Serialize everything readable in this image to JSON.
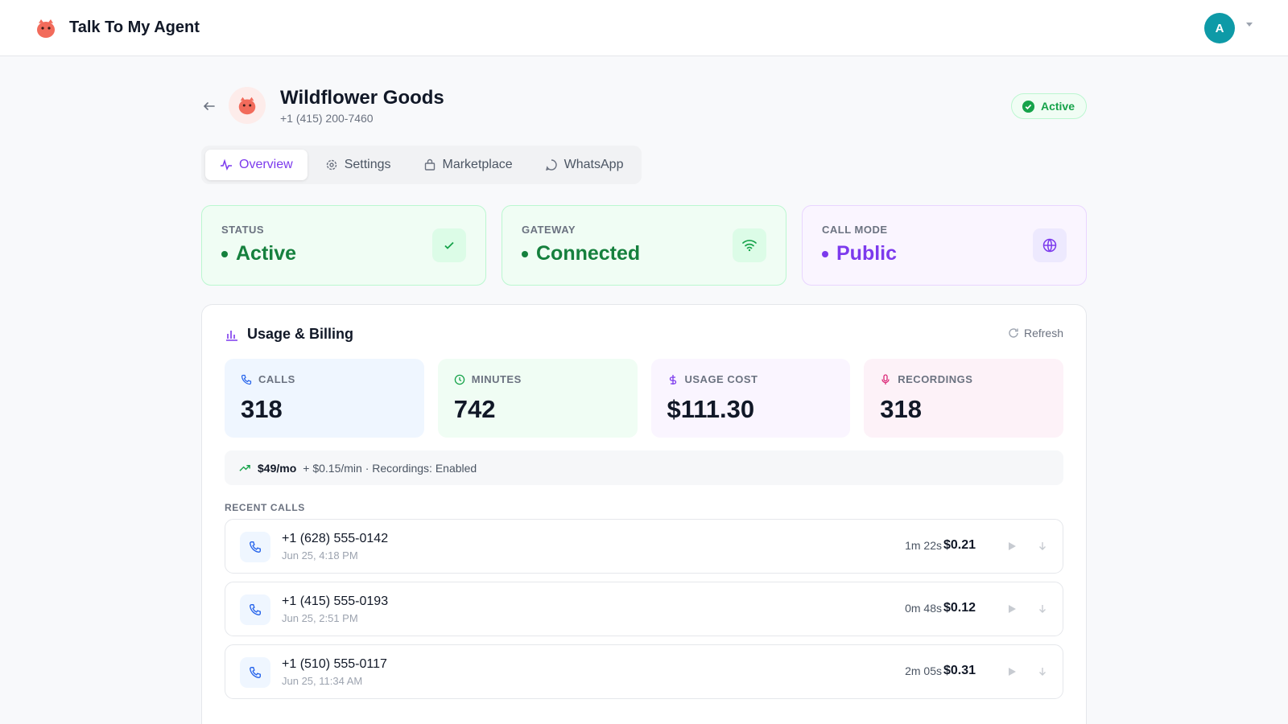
{
  "app": {
    "name": "Talk To My Agent",
    "avatar": "A"
  },
  "agent": {
    "name": "Wildflower Goods",
    "phone": "+1 (415) 200-7460",
    "badge": "Active"
  },
  "tabs": [
    "Overview",
    "Settings",
    "Marketplace",
    "WhatsApp"
  ],
  "status_cards": [
    {
      "label": "STATUS",
      "value": "Active"
    },
    {
      "label": "GATEWAY",
      "value": "Connected"
    },
    {
      "label": "CALL MODE",
      "value": "Public"
    }
  ],
  "usage": {
    "title": "Usage & Billing",
    "refresh": "Refresh",
    "stats": [
      {
        "label": "CALLS",
        "value": 318
      },
      {
        "label": "MINUTES",
        "value": 742
      },
      {
        "label": "USAGE COST",
        "value": "$111.30"
      },
      {
        "label": "RECORDINGS",
        "value": 318
      }
    ],
    "plan": "$49/mo",
    "plan_detail": "+ $0.15/min · Recordings: Enabled",
    "recent_title": "RECENT CALLS",
    "calls": [
      {
        "number": "+1 (628) 555-0142",
        "time": "Jun 25, 4:18 PM",
        "duration": "1m 22s",
        "cost": "$0.21"
      },
      {
        "number": "+1 (415) 555-0193",
        "time": "Jun 25, 2:51 PM",
        "duration": "0m 48s",
        "cost": "$0.12"
      },
      {
        "number": "+1 (510) 555-0117",
        "time": "Jun 25, 11:34 AM",
        "duration": "2m 05s",
        "cost": "$0.31"
      }
    ]
  }
}
